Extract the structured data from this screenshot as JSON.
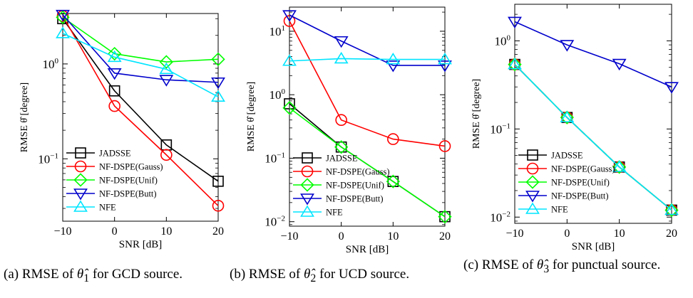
{
  "figure": {
    "legend_labels": [
      "JADSSE",
      "NF-DSPE(Gauss)",
      "NF-DSPE(Unif)",
      "NF-DSPE(Butt)",
      "NFE"
    ],
    "series_colors": [
      "#000000",
      "#ff0000",
      "#00ff00",
      "#0000cc",
      "#00e5ff"
    ],
    "series_markers": [
      "square",
      "circle",
      "diamond",
      "triangle-down",
      "triangle-up"
    ]
  },
  "captions": {
    "a": {
      "pre": "(a) RMSE of ",
      "sym": "θ̂",
      "sub": "1",
      "post": " for GCD source."
    },
    "b": {
      "pre": "(b) RMSE of ",
      "sym": "θ̂",
      "sub": "2",
      "post": " for UCD source."
    },
    "c": {
      "pre": "(c)  RMSE  of  ",
      "sym": "θ̂",
      "sub": "3",
      "post": "  for  punctual source."
    }
  },
  "chart_data": [
    {
      "type": "line",
      "xlabel": "SNR [dB]",
      "ylabel": "RMSE θ̂ [degree]",
      "x": [
        -10,
        0,
        10,
        20
      ],
      "xlim": [
        -10,
        20
      ],
      "ylim": [
        0.022,
        3.4
      ],
      "yscale": "log",
      "xticks": [
        "−10",
        "0",
        "10",
        "20"
      ],
      "yticks": [
        {
          "v": 0.1,
          "base": "10",
          "exp": "−1"
        },
        {
          "v": 1,
          "base": "10",
          "exp": "0"
        }
      ],
      "legend_position": "bottom-left",
      "series": [
        {
          "name": "JADSSE",
          "values": [
            3.0,
            0.52,
            0.14,
            0.058
          ]
        },
        {
          "name": "NF-DSPE(Gauss)",
          "values": [
            3.2,
            0.36,
            0.11,
            0.032
          ]
        },
        {
          "name": "NF-DSPE(Unif)",
          "values": [
            3.1,
            1.28,
            1.05,
            1.12
          ]
        },
        {
          "name": "NF-DSPE(Butt)",
          "values": [
            3.3,
            0.8,
            0.68,
            0.64
          ]
        },
        {
          "name": "NFE",
          "values": [
            2.1,
            1.18,
            0.88,
            0.45
          ]
        }
      ]
    },
    {
      "type": "line",
      "xlabel": "SNR [dB]",
      "ylabel": "RMSE θ̂ [degree]",
      "x": [
        -10,
        0,
        10,
        20
      ],
      "xlim": [
        -10,
        20
      ],
      "ylim": [
        0.0085,
        24
      ],
      "yscale": "log",
      "xticks": [
        "−10",
        "0",
        "10",
        "20"
      ],
      "yticks": [
        {
          "v": 0.01,
          "base": "10",
          "exp": "−2"
        },
        {
          "v": 0.1,
          "base": "10",
          "exp": "−1"
        },
        {
          "v": 1,
          "base": "10",
          "exp": "0"
        },
        {
          "v": 10,
          "base": "10",
          "exp": "1"
        }
      ],
      "legend_position": "bottom-left",
      "series": [
        {
          "name": "JADSSE",
          "values": [
            0.72,
            0.15,
            0.043,
            0.012
          ]
        },
        {
          "name": "NF-DSPE(Gauss)",
          "values": [
            14.5,
            0.4,
            0.2,
            0.155
          ]
        },
        {
          "name": "NF-DSPE(Unif)",
          "values": [
            0.62,
            0.15,
            0.043,
            0.012
          ]
        },
        {
          "name": "NF-DSPE(Butt)",
          "values": [
            18.0,
            7.0,
            2.9,
            2.9
          ]
        },
        {
          "name": "NFE",
          "values": [
            3.4,
            3.7,
            3.6,
            3.6
          ]
        }
      ]
    },
    {
      "type": "line",
      "xlabel": "SNR [dB]",
      "ylabel": "RMSE θ̂ [degree]",
      "x": [
        -10,
        0,
        10,
        20
      ],
      "xlim": [
        -10,
        20
      ],
      "ylim": [
        0.0085,
        2.6
      ],
      "yscale": "log",
      "xticks": [
        "−10",
        "0",
        "10",
        "20"
      ],
      "yticks": [
        {
          "v": 0.01,
          "base": "10",
          "exp": "−2"
        },
        {
          "v": 0.1,
          "base": "10",
          "exp": "−1"
        },
        {
          "v": 1,
          "base": "10",
          "exp": "0"
        }
      ],
      "legend_position": "bottom-left",
      "series": [
        {
          "name": "JADSSE",
          "values": [
            0.54,
            0.135,
            0.037,
            0.012
          ]
        },
        {
          "name": "NF-DSPE(Gauss)",
          "values": [
            0.54,
            0.135,
            0.037,
            0.012
          ]
        },
        {
          "name": "NF-DSPE(Unif)",
          "values": [
            0.54,
            0.135,
            0.037,
            0.012
          ]
        },
        {
          "name": "NF-DSPE(Butt)",
          "values": [
            1.65,
            0.9,
            0.55,
            0.3
          ]
        },
        {
          "name": "NFE",
          "values": [
            0.54,
            0.135,
            0.037,
            0.012
          ]
        }
      ]
    }
  ]
}
